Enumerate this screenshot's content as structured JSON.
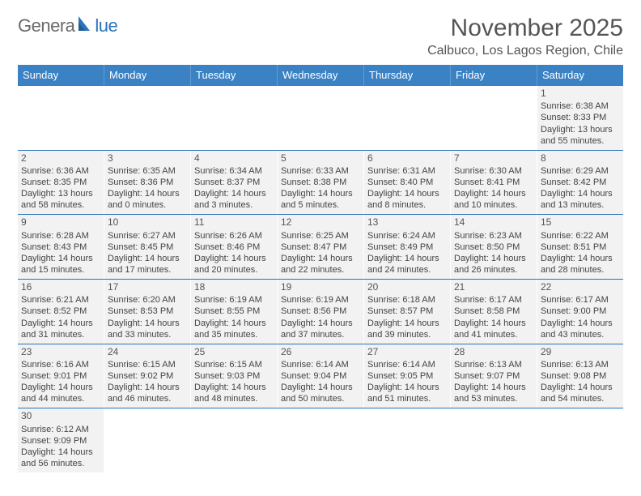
{
  "logo": {
    "text_gray": "Genera",
    "text_blue": "lue"
  },
  "title": "November 2025",
  "location": "Calbuco, Los Lagos Region, Chile",
  "colors": {
    "header_bg": "#3b82c4",
    "header_text": "#ffffff",
    "cell_bg": "#f2f2f2",
    "divider": "#2a73b8",
    "body_text": "#444444",
    "title_text": "#555555"
  },
  "weekday_headers": [
    "Sunday",
    "Monday",
    "Tuesday",
    "Wednesday",
    "Thursday",
    "Friday",
    "Saturday"
  ],
  "weeks": [
    [
      null,
      null,
      null,
      null,
      null,
      null,
      {
        "n": "1",
        "sr": "Sunrise: 6:38 AM",
        "ss": "Sunset: 8:33 PM",
        "d1": "Daylight: 13 hours",
        "d2": "and 55 minutes."
      }
    ],
    [
      {
        "n": "2",
        "sr": "Sunrise: 6:36 AM",
        "ss": "Sunset: 8:35 PM",
        "d1": "Daylight: 13 hours",
        "d2": "and 58 minutes."
      },
      {
        "n": "3",
        "sr": "Sunrise: 6:35 AM",
        "ss": "Sunset: 8:36 PM",
        "d1": "Daylight: 14 hours",
        "d2": "and 0 minutes."
      },
      {
        "n": "4",
        "sr": "Sunrise: 6:34 AM",
        "ss": "Sunset: 8:37 PM",
        "d1": "Daylight: 14 hours",
        "d2": "and 3 minutes."
      },
      {
        "n": "5",
        "sr": "Sunrise: 6:33 AM",
        "ss": "Sunset: 8:38 PM",
        "d1": "Daylight: 14 hours",
        "d2": "and 5 minutes."
      },
      {
        "n": "6",
        "sr": "Sunrise: 6:31 AM",
        "ss": "Sunset: 8:40 PM",
        "d1": "Daylight: 14 hours",
        "d2": "and 8 minutes."
      },
      {
        "n": "7",
        "sr": "Sunrise: 6:30 AM",
        "ss": "Sunset: 8:41 PM",
        "d1": "Daylight: 14 hours",
        "d2": "and 10 minutes."
      },
      {
        "n": "8",
        "sr": "Sunrise: 6:29 AM",
        "ss": "Sunset: 8:42 PM",
        "d1": "Daylight: 14 hours",
        "d2": "and 13 minutes."
      }
    ],
    [
      {
        "n": "9",
        "sr": "Sunrise: 6:28 AM",
        "ss": "Sunset: 8:43 PM",
        "d1": "Daylight: 14 hours",
        "d2": "and 15 minutes."
      },
      {
        "n": "10",
        "sr": "Sunrise: 6:27 AM",
        "ss": "Sunset: 8:45 PM",
        "d1": "Daylight: 14 hours",
        "d2": "and 17 minutes."
      },
      {
        "n": "11",
        "sr": "Sunrise: 6:26 AM",
        "ss": "Sunset: 8:46 PM",
        "d1": "Daylight: 14 hours",
        "d2": "and 20 minutes."
      },
      {
        "n": "12",
        "sr": "Sunrise: 6:25 AM",
        "ss": "Sunset: 8:47 PM",
        "d1": "Daylight: 14 hours",
        "d2": "and 22 minutes."
      },
      {
        "n": "13",
        "sr": "Sunrise: 6:24 AM",
        "ss": "Sunset: 8:49 PM",
        "d1": "Daylight: 14 hours",
        "d2": "and 24 minutes."
      },
      {
        "n": "14",
        "sr": "Sunrise: 6:23 AM",
        "ss": "Sunset: 8:50 PM",
        "d1": "Daylight: 14 hours",
        "d2": "and 26 minutes."
      },
      {
        "n": "15",
        "sr": "Sunrise: 6:22 AM",
        "ss": "Sunset: 8:51 PM",
        "d1": "Daylight: 14 hours",
        "d2": "and 28 minutes."
      }
    ],
    [
      {
        "n": "16",
        "sr": "Sunrise: 6:21 AM",
        "ss": "Sunset: 8:52 PM",
        "d1": "Daylight: 14 hours",
        "d2": "and 31 minutes."
      },
      {
        "n": "17",
        "sr": "Sunrise: 6:20 AM",
        "ss": "Sunset: 8:53 PM",
        "d1": "Daylight: 14 hours",
        "d2": "and 33 minutes."
      },
      {
        "n": "18",
        "sr": "Sunrise: 6:19 AM",
        "ss": "Sunset: 8:55 PM",
        "d1": "Daylight: 14 hours",
        "d2": "and 35 minutes."
      },
      {
        "n": "19",
        "sr": "Sunrise: 6:19 AM",
        "ss": "Sunset: 8:56 PM",
        "d1": "Daylight: 14 hours",
        "d2": "and 37 minutes."
      },
      {
        "n": "20",
        "sr": "Sunrise: 6:18 AM",
        "ss": "Sunset: 8:57 PM",
        "d1": "Daylight: 14 hours",
        "d2": "and 39 minutes."
      },
      {
        "n": "21",
        "sr": "Sunrise: 6:17 AM",
        "ss": "Sunset: 8:58 PM",
        "d1": "Daylight: 14 hours",
        "d2": "and 41 minutes."
      },
      {
        "n": "22",
        "sr": "Sunrise: 6:17 AM",
        "ss": "Sunset: 9:00 PM",
        "d1": "Daylight: 14 hours",
        "d2": "and 43 minutes."
      }
    ],
    [
      {
        "n": "23",
        "sr": "Sunrise: 6:16 AM",
        "ss": "Sunset: 9:01 PM",
        "d1": "Daylight: 14 hours",
        "d2": "and 44 minutes."
      },
      {
        "n": "24",
        "sr": "Sunrise: 6:15 AM",
        "ss": "Sunset: 9:02 PM",
        "d1": "Daylight: 14 hours",
        "d2": "and 46 minutes."
      },
      {
        "n": "25",
        "sr": "Sunrise: 6:15 AM",
        "ss": "Sunset: 9:03 PM",
        "d1": "Daylight: 14 hours",
        "d2": "and 48 minutes."
      },
      {
        "n": "26",
        "sr": "Sunrise: 6:14 AM",
        "ss": "Sunset: 9:04 PM",
        "d1": "Daylight: 14 hours",
        "d2": "and 50 minutes."
      },
      {
        "n": "27",
        "sr": "Sunrise: 6:14 AM",
        "ss": "Sunset: 9:05 PM",
        "d1": "Daylight: 14 hours",
        "d2": "and 51 minutes."
      },
      {
        "n": "28",
        "sr": "Sunrise: 6:13 AM",
        "ss": "Sunset: 9:07 PM",
        "d1": "Daylight: 14 hours",
        "d2": "and 53 minutes."
      },
      {
        "n": "29",
        "sr": "Sunrise: 6:13 AM",
        "ss": "Sunset: 9:08 PM",
        "d1": "Daylight: 14 hours",
        "d2": "and 54 minutes."
      }
    ],
    [
      {
        "n": "30",
        "sr": "Sunrise: 6:12 AM",
        "ss": "Sunset: 9:09 PM",
        "d1": "Daylight: 14 hours",
        "d2": "and 56 minutes."
      },
      null,
      null,
      null,
      null,
      null,
      null
    ]
  ]
}
